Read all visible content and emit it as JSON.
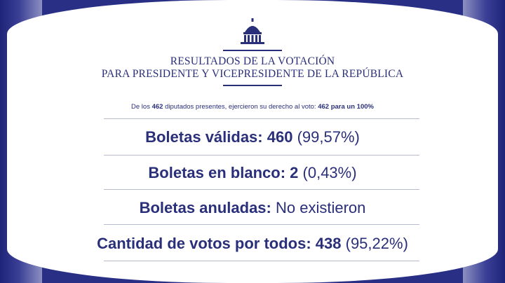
{
  "header": {
    "title_line1": "RESULTADOS DE LA VOTACIÓN",
    "title_line2": "PARA PRESIDENTE Y VICEPRESIDENTE DE LA REPÚBLICA"
  },
  "summary": {
    "prefix": "De los ",
    "present_count": "462",
    "middle1": " diputados presentes, ejercieron su derecho al voto: ",
    "voted_count": "462",
    "middle2": " para un ",
    "percent": "100%"
  },
  "results": [
    {
      "label": "Boletas válidas:",
      "value_bold": "460",
      "value_normal": "(99,57%)"
    },
    {
      "label": "Boletas en blanco:",
      "value_bold": "2",
      "value_normal": "(0,43%)"
    },
    {
      "label": "Boletas anuladas:",
      "value_bold": "",
      "value_normal": "No existieron"
    },
    {
      "label": "Cantidad de votos por todos:",
      "value_bold": "438",
      "value_normal": "(95,22%)"
    }
  ],
  "colors": {
    "primary": "#2a2f7a",
    "frame": "#2a2f86",
    "rule": "#b9bccf"
  }
}
